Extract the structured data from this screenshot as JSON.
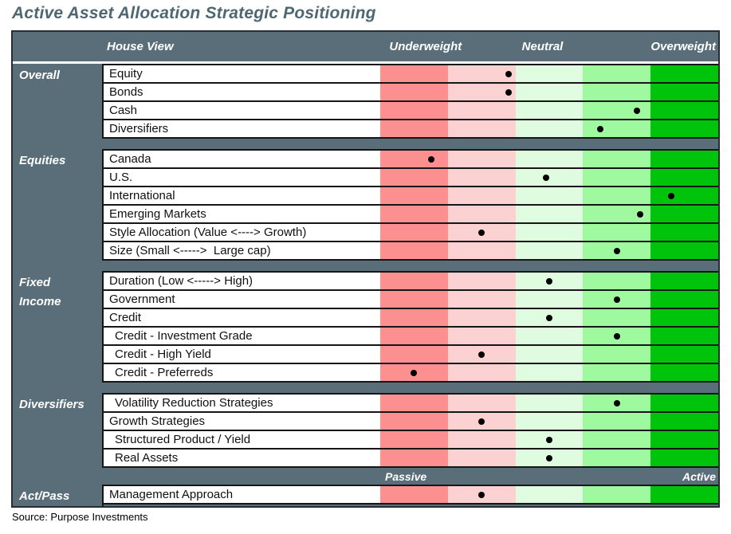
{
  "title": "Active Asset Allocation Strategic Positioning",
  "source": "Source: Purpose Investments",
  "colors": {
    "table_slate": "#5A6E79",
    "title_text": "#4D6773",
    "row_border": "#161616",
    "dot": "#000000",
    "scale": [
      "#FC8F8F",
      "#FCD1D1",
      "#DFFBE0",
      "#9FFA9F",
      "#00C30B"
    ]
  },
  "chart_data": {
    "type": "heatmap",
    "title": "Active Asset Allocation Strategic Positioning",
    "house_view_label": "House View",
    "scale_labels": [
      "Underweight",
      "Neutral",
      "Overweight"
    ],
    "scale_colors": [
      "#FC8F8F",
      "#FCD1D1",
      "#DFFBE0",
      "#9FFA9F",
      "#00C30B"
    ],
    "bottom_scale": {
      "left": "Passive",
      "right": "Active"
    },
    "sections": [
      {
        "name": "Overall",
        "rows": [
          {
            "label": "Equity",
            "position": 0.38
          },
          {
            "label": "Bonds",
            "position": 0.38
          },
          {
            "label": "Cash",
            "position": 0.76
          },
          {
            "label": "Diversifiers",
            "position": 0.65
          }
        ]
      },
      {
        "name": "Equities",
        "rows": [
          {
            "label": "Canada",
            "position": 0.15
          },
          {
            "label": "U.S.",
            "position": 0.49
          },
          {
            "label": "International",
            "position": 0.86
          },
          {
            "label": "Emerging Markets",
            "position": 0.77
          },
          {
            "label": "Style Allocation (Value <----> Growth)",
            "position": 0.3
          },
          {
            "label": "Size (Small <----->  Large cap)",
            "position": 0.7
          }
        ]
      },
      {
        "name": "Fixed Income",
        "rows": [
          {
            "label": "Duration (Low <-----> High)",
            "position": 0.5
          },
          {
            "label": "Government",
            "position": 0.7
          },
          {
            "label": "Credit",
            "position": 0.5
          },
          {
            "label": "Credit - Investment Grade",
            "position": 0.7,
            "indent": true
          },
          {
            "label": "Credit - High Yield",
            "position": 0.3,
            "indent": true
          },
          {
            "label": "Credit - Preferreds",
            "position": 0.1,
            "indent": true
          }
        ]
      },
      {
        "name": "Diversifiers",
        "rows": [
          {
            "label": "Volatility Reduction Strategies",
            "position": 0.7,
            "indent": true
          },
          {
            "label": "Growth Strategies",
            "position": 0.3
          },
          {
            "label": "Structured Product / Yield",
            "position": 0.5,
            "indent": true
          },
          {
            "label": "Real Assets",
            "position": 0.5,
            "indent": true
          }
        ]
      },
      {
        "name": "Act/Pass",
        "rows": [
          {
            "label": "Management Approach",
            "position": 0.3
          }
        ]
      }
    ]
  }
}
